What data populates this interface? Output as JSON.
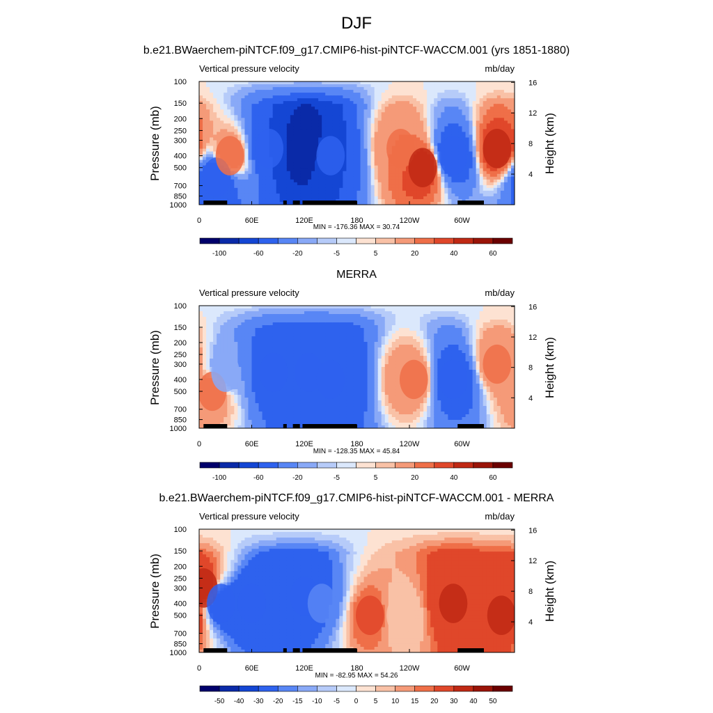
{
  "figure": {
    "title": "DJF"
  },
  "panels": [
    {
      "title": "b.e21.BWaerchem-piNTCF.f09_g17.CMIP6-hist-piNTCF-WACCM.001 (yrs 1851-1880)",
      "left_string": "Vertical pressure velocity",
      "right_string": "mb/day",
      "minmax": "MIN = -176.36  MAX =  30.74",
      "ylabel": "Pressure (mb)",
      "y2label": "Height (km)"
    },
    {
      "title": "MERRA",
      "left_string": "Vertical pressure velocity",
      "right_string": "mb/day",
      "minmax": "MIN = -128.35  MAX =  45.84",
      "ylabel": "Pressure (mb)",
      "y2label": "Height (km)"
    },
    {
      "title": "b.e21.BWaerchem-piNTCF.f09_g17.CMIP6-hist-piNTCF-WACCM.001 - MERRA",
      "left_string": "Vertical pressure velocity",
      "right_string": "mb/day",
      "minmax": "MIN = -82.95  MAX =  54.26",
      "ylabel": "Pressure (mb)",
      "y2label": "Height (km)"
    }
  ],
  "chart_data": [
    {
      "type": "heatmap",
      "title": "b.e21.BWaerchem-piNTCF.f09_g17.CMIP6-hist-piNTCF-WACCM.001 (yrs 1851-1880)",
      "xlabel": "",
      "ylabel": "Pressure (mb)",
      "y2label": "Height (km)",
      "x_ticks": [
        "0",
        "60E",
        "120E",
        "180",
        "120W",
        "60W"
      ],
      "y_ticks": [
        "100",
        "150",
        "200",
        "250",
        "300",
        "400",
        "500",
        "700",
        "850",
        "1000"
      ],
      "y2_ticks": [
        "16",
        "12",
        "8",
        "4"
      ],
      "xlim": [
        0,
        360
      ],
      "ylim": [
        1000,
        100
      ],
      "y_scale": "log",
      "colorbar_labels": [
        "-100",
        "-60",
        "-20",
        "-5",
        "5",
        "20",
        "40",
        "60"
      ],
      "min": -176.36,
      "max": 30.74,
      "features": [
        {
          "lon": 20,
          "p": 600,
          "value": -60
        },
        {
          "lon": 35,
          "p": 400,
          "value": 20
        },
        {
          "lon": 80,
          "p": 350,
          "value": -60
        },
        {
          "lon": 120,
          "p": 350,
          "value": -100
        },
        {
          "lon": 150,
          "p": 400,
          "value": -60
        },
        {
          "lon": 230,
          "p": 350,
          "value": 20
        },
        {
          "lon": 255,
          "p": 500,
          "value": 40
        },
        {
          "lon": 290,
          "p": 400,
          "value": -60
        },
        {
          "lon": 340,
          "p": 350,
          "value": 40
        }
      ]
    },
    {
      "type": "heatmap",
      "title": "MERRA",
      "xlabel": "",
      "ylabel": "Pressure (mb)",
      "y2label": "Height (km)",
      "x_ticks": [
        "0",
        "60E",
        "120E",
        "180",
        "120W",
        "60W"
      ],
      "y_ticks": [
        "100",
        "150",
        "200",
        "250",
        "300",
        "400",
        "500",
        "700",
        "850",
        "1000"
      ],
      "y2_ticks": [
        "16",
        "12",
        "8",
        "4"
      ],
      "xlim": [
        0,
        360
      ],
      "ylim": [
        1000,
        100
      ],
      "y_scale": "log",
      "colorbar_labels": [
        "-100",
        "-60",
        "-20",
        "-5",
        "5",
        "20",
        "40",
        "60"
      ],
      "min": -128.35,
      "max": 45.84,
      "features": [
        {
          "lon": 15,
          "p": 500,
          "value": 20
        },
        {
          "lon": 30,
          "p": 350,
          "value": -20
        },
        {
          "lon": 85,
          "p": 350,
          "value": -60
        },
        {
          "lon": 125,
          "p": 350,
          "value": -60
        },
        {
          "lon": 150,
          "p": 400,
          "value": -60
        },
        {
          "lon": 245,
          "p": 400,
          "value": 20
        },
        {
          "lon": 290,
          "p": 400,
          "value": -60
        },
        {
          "lon": 340,
          "p": 300,
          "value": 20
        }
      ]
    },
    {
      "type": "heatmap",
      "title": "b.e21.BWaerchem-piNTCF.f09_g17.CMIP6-hist-piNTCF-WACCM.001 - MERRA",
      "xlabel": "",
      "ylabel": "Pressure (mb)",
      "y2label": "Height (km)",
      "x_ticks": [
        "0",
        "60E",
        "120E",
        "180",
        "120W",
        "60W"
      ],
      "y_ticks": [
        "100",
        "150",
        "200",
        "250",
        "300",
        "400",
        "500",
        "700",
        "850",
        "1000"
      ],
      "y2_ticks": [
        "16",
        "12",
        "8",
        "4"
      ],
      "xlim": [
        0,
        360
      ],
      "ylim": [
        1000,
        100
      ],
      "y_scale": "log",
      "colorbar_labels": [
        "-50",
        "-40",
        "-30",
        "-20",
        "-15",
        "-10",
        "-5",
        "0",
        "5",
        "10",
        "15",
        "20",
        "30",
        "40",
        "50"
      ],
      "min": -82.95,
      "max": 54.26,
      "features": [
        {
          "lon": 5,
          "p": 300,
          "value": 30
        },
        {
          "lon": 25,
          "p": 400,
          "value": -30
        },
        {
          "lon": 60,
          "p": 400,
          "value": -30
        },
        {
          "lon": 120,
          "p": 350,
          "value": -30
        },
        {
          "lon": 140,
          "p": 400,
          "value": -20
        },
        {
          "lon": 195,
          "p": 500,
          "value": 20
        },
        {
          "lon": 230,
          "p": 500,
          "value": 5
        },
        {
          "lon": 290,
          "p": 400,
          "value": 30
        },
        {
          "lon": 345,
          "p": 500,
          "value": 30
        }
      ]
    }
  ],
  "colors": {
    "palette_abs": [
      "#00006b",
      "#0a2aa8",
      "#1446d4",
      "#2e62ee",
      "#5886f5",
      "#89a9f7",
      "#b6cbf9",
      "#dbe8fc",
      "#fde2d2",
      "#f9c1a6",
      "#f59a78",
      "#ef6f48",
      "#e0472a",
      "#c02914",
      "#9a1408",
      "#6b0000"
    ],
    "palette_diff": [
      "#00006b",
      "#0a2aa8",
      "#1446d4",
      "#2e62ee",
      "#5886f5",
      "#89a9f7",
      "#b6cbf9",
      "#dbe8fc",
      "#fde2d2",
      "#f9c1a6",
      "#f59a78",
      "#ef6f48",
      "#e0472a",
      "#c02914",
      "#9a1408",
      "#6b0000"
    ],
    "topo": "#000000"
  }
}
